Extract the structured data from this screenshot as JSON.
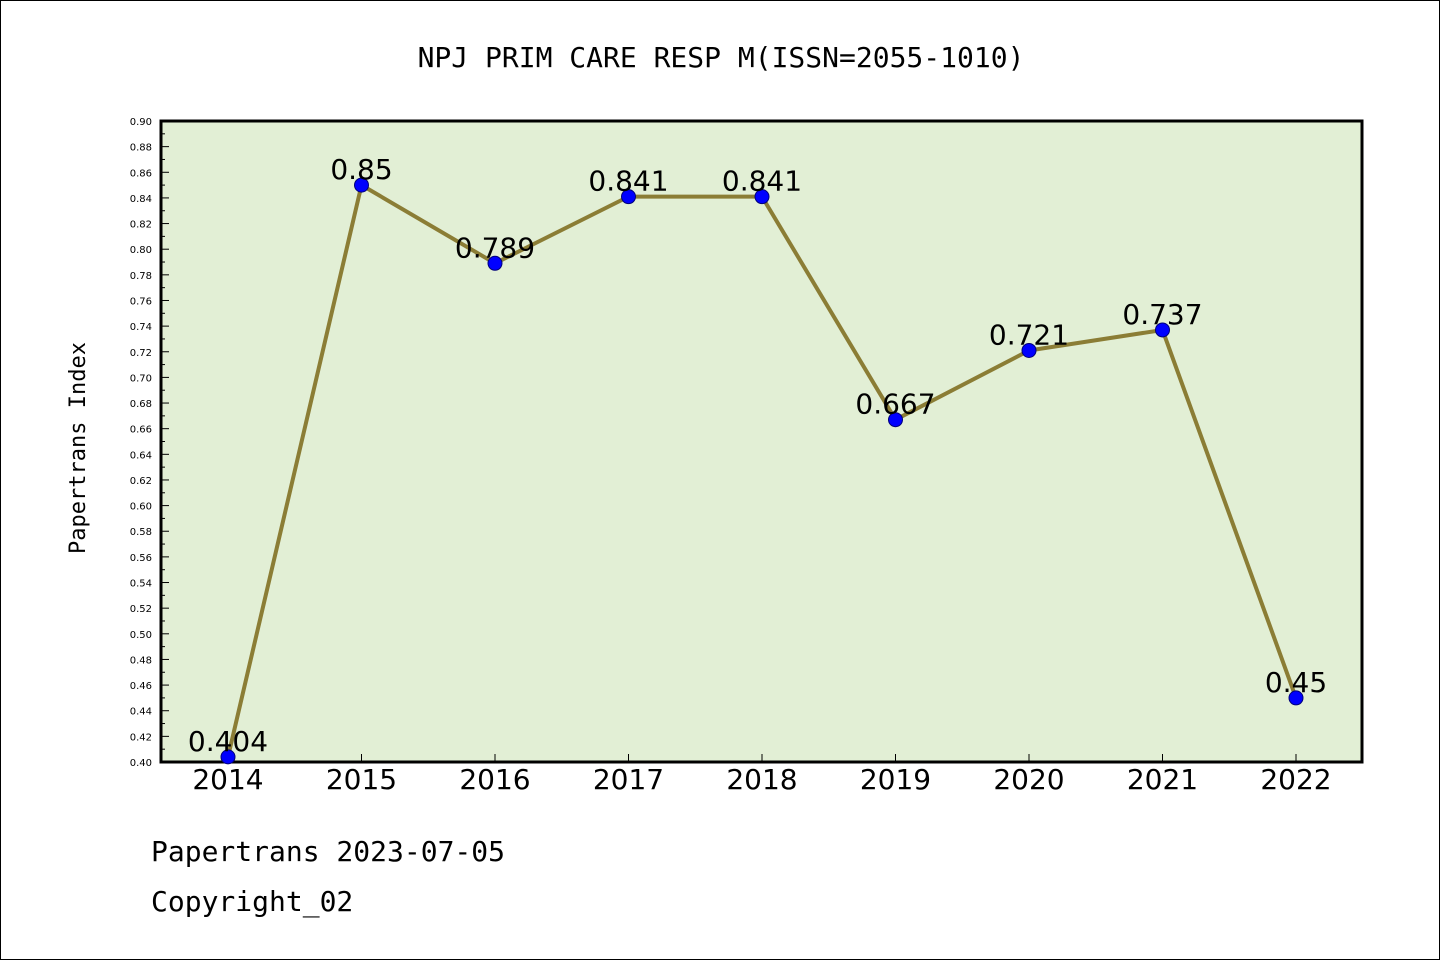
{
  "colors": {
    "plot_background": "#e2efd5",
    "line": "#8b7d35",
    "marker": "#0000ff",
    "frame": "#000000"
  },
  "footer": {
    "source": "Papertrans 2023-07-05",
    "copyright": "Copyright_02"
  },
  "chart_data": {
    "type": "line",
    "title": "NPJ PRIM CARE RESP M(ISSN=2055-1010)",
    "xlabel": "",
    "ylabel": "Papertrans Index",
    "categories": [
      "2014",
      "2015",
      "2016",
      "2017",
      "2018",
      "2019",
      "2020",
      "2021",
      "2022"
    ],
    "series": [
      {
        "values": [
          0.404,
          0.85,
          0.789,
          0.841,
          0.841,
          0.667,
          0.721,
          0.737,
          0.45
        ],
        "labels": [
          "0.404",
          "0.85",
          "0.789",
          "0.841",
          "0.841",
          "0.667",
          "0.721",
          "0.737",
          "0.45"
        ]
      }
    ],
    "ylim": [
      0.4,
      0.9
    ],
    "yticks": [
      "0.40",
      "0.42",
      "0.44",
      "0.46",
      "0.48",
      "0.50",
      "0.52",
      "0.54",
      "0.56",
      "0.58",
      "0.60",
      "0.62",
      "0.64",
      "0.66",
      "0.68",
      "0.70",
      "0.72",
      "0.74",
      "0.76",
      "0.78",
      "0.80",
      "0.82",
      "0.84",
      "0.86",
      "0.88",
      "0.90"
    ],
    "grid": false,
    "legend": "none"
  }
}
